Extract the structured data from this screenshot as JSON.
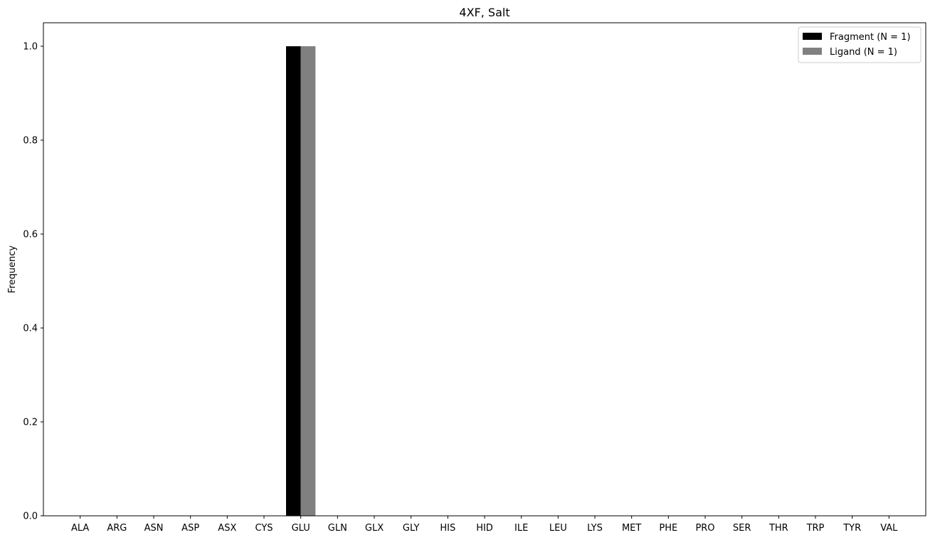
{
  "chart_data": {
    "type": "bar",
    "title": "4XF, Salt",
    "xlabel": "",
    "ylabel": "Frequency",
    "ylim": [
      0,
      1.05
    ],
    "yticks": [
      0.0,
      0.2,
      0.4,
      0.6,
      0.8,
      1.0
    ],
    "ytick_labels": [
      "0.0",
      "0.2",
      "0.4",
      "0.6",
      "0.8",
      "1.0"
    ],
    "categories": [
      "ALA",
      "ARG",
      "ASN",
      "ASP",
      "ASX",
      "CYS",
      "GLU",
      "GLN",
      "GLX",
      "GLY",
      "HIS",
      "HID",
      "ILE",
      "LEU",
      "LYS",
      "MET",
      "PHE",
      "PRO",
      "SER",
      "THR",
      "TRP",
      "TYR",
      "VAL"
    ],
    "series": [
      {
        "name": "Fragment (N = 1)",
        "color": "#000000",
        "values": [
          0,
          0,
          0,
          0,
          0,
          0,
          1.0,
          0,
          0,
          0,
          0,
          0,
          0,
          0,
          0,
          0,
          0,
          0,
          0,
          0,
          0,
          0,
          0
        ]
      },
      {
        "name": "Ligand (N = 1)",
        "color": "#808080",
        "values": [
          0,
          0,
          0,
          0,
          0,
          0,
          1.0,
          0,
          0,
          0,
          0,
          0,
          0,
          0,
          0,
          0,
          0,
          0,
          0,
          0,
          0,
          0,
          0
        ]
      }
    ],
    "grid": false,
    "legend_position": "top-right"
  }
}
